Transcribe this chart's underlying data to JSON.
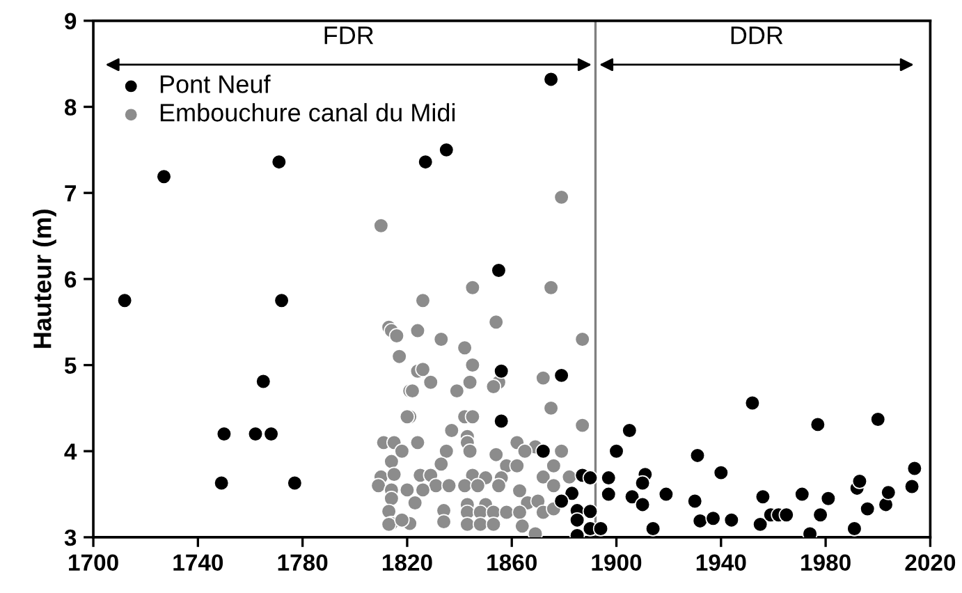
{
  "chart_data": {
    "type": "scatter",
    "ylabel": "Hauteur (m)",
    "xlim": [
      1700,
      2020
    ],
    "xticks": [
      1700,
      1740,
      1780,
      1820,
      1860,
      1900,
      1940,
      1980,
      2020
    ],
    "ylim": [
      3,
      9
    ],
    "yticks": [
      3,
      4,
      5,
      6,
      7,
      8,
      9
    ],
    "grid": false,
    "legend": "top left",
    "marker": "circle",
    "annotations": [
      "FDR",
      "DDR"
    ],
    "ref_lines": [
      {
        "axis": "x",
        "value": 1892,
        "color": "#808080"
      }
    ],
    "series": [
      {
        "name": "Pont Neuf",
        "color": "#000000",
        "x": [
          1712,
          1727,
          1771,
          1772,
          1765,
          1750,
          1762,
          1768,
          1749,
          1777,
          1875,
          1835,
          1827,
          1855,
          1856,
          1879,
          1856,
          1872,
          1900,
          1905,
          1887,
          1890,
          1897,
          1897,
          1883,
          1879,
          1885,
          1890,
          1885,
          1890,
          1894,
          1885,
          1906,
          1911,
          1910,
          1910,
          1914,
          1919,
          1931,
          1930,
          1932,
          1937,
          1940,
          1944,
          1952,
          1956,
          1955,
          1959,
          1962,
          1965,
          1971,
          1974,
          1977,
          1978,
          1981,
          1991,
          1992,
          1993,
          1996,
          2000,
          2003,
          2004,
          2013,
          2014
        ],
        "values": [
          5.75,
          7.19,
          7.36,
          5.75,
          4.81,
          4.2,
          4.2,
          4.2,
          3.63,
          3.63,
          8.32,
          7.5,
          7.36,
          6.1,
          4.93,
          4.88,
          4.35,
          4.0,
          4.0,
          4.24,
          3.72,
          3.69,
          3.69,
          3.5,
          3.51,
          3.42,
          3.31,
          3.3,
          3.2,
          3.1,
          3.1,
          3.02,
          3.47,
          3.73,
          3.63,
          3.38,
          3.1,
          3.5,
          3.95,
          3.42,
          3.19,
          3.22,
          3.75,
          3.2,
          4.56,
          3.47,
          3.15,
          3.26,
          3.26,
          3.26,
          3.5,
          3.04,
          4.31,
          3.26,
          3.45,
          3.1,
          3.57,
          3.65,
          3.33,
          4.37,
          3.38,
          3.52,
          3.59,
          3.8
        ]
      },
      {
        "name": "Embouchure canal du Midi",
        "color": "#8c8c8c",
        "x": [
          1879,
          1810,
          1826,
          1813,
          1814,
          1824,
          1817,
          1824,
          1821,
          1821,
          1811,
          1815,
          1824,
          1818,
          1845,
          1875,
          1854,
          1816,
          1833,
          1887,
          1842,
          1845,
          1826,
          1829,
          1844,
          1855,
          1872,
          1822,
          1839,
          1853,
          1875,
          1820,
          1842,
          1845,
          1887,
          1837,
          1843,
          1843,
          1862,
          1869,
          1865,
          1879,
          1835,
          1844,
          1854,
          1814,
          1858,
          1862,
          1876,
          1833,
          1810,
          1815,
          1825,
          1829,
          1845,
          1850,
          1856,
          1872,
          1882,
          1809,
          1831,
          1836,
          1842,
          1847,
          1855,
          1876,
          1814,
          1820,
          1826,
          1863,
          1814,
          1823,
          1866,
          1843,
          1850,
          1870,
          1813,
          1834,
          1843,
          1848,
          1853,
          1858,
          1863,
          1872,
          1876,
          1814,
          1821,
          1834,
          1843,
          1848,
          1853,
          1864,
          1869,
          1813,
          1818
        ],
        "values": [
          6.95,
          6.62,
          5.75,
          5.44,
          5.4,
          5.4,
          5.1,
          4.93,
          4.7,
          4.4,
          4.1,
          4.1,
          4.1,
          4.0,
          5.9,
          5.9,
          5.5,
          5.34,
          5.3,
          5.3,
          5.2,
          5.0,
          4.95,
          4.8,
          4.8,
          4.8,
          4.85,
          4.7,
          4.7,
          4.75,
          4.5,
          4.4,
          4.4,
          4.4,
          4.3,
          4.24,
          4.17,
          4.1,
          4.1,
          4.05,
          4.0,
          4.0,
          4.0,
          4.0,
          3.96,
          3.88,
          3.83,
          3.83,
          3.83,
          3.85,
          3.7,
          3.73,
          3.72,
          3.72,
          3.72,
          3.69,
          3.69,
          3.7,
          3.7,
          3.6,
          3.6,
          3.6,
          3.6,
          3.6,
          3.6,
          3.6,
          3.55,
          3.55,
          3.55,
          3.54,
          3.45,
          3.4,
          3.4,
          3.38,
          3.38,
          3.42,
          3.3,
          3.31,
          3.29,
          3.29,
          3.29,
          3.29,
          3.29,
          3.29,
          3.33,
          3.16,
          3.16,
          3.18,
          3.15,
          3.15,
          3.15,
          3.13,
          3.04,
          3.15,
          3.2
        ]
      }
    ]
  }
}
